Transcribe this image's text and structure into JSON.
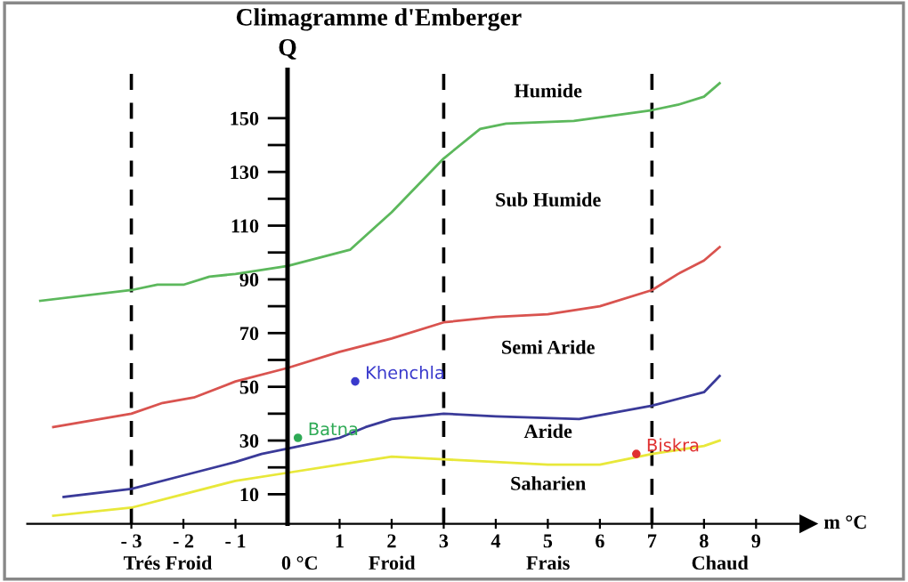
{
  "chart_data": {
    "type": "line",
    "title": "Climagramme d'Emberger",
    "ylabel": "Q",
    "xlabel": "m °C",
    "xlim": [
      -5,
      10
    ],
    "ylim": [
      -1,
      168
    ],
    "xticks": [
      {
        "value": -3,
        "label": "- 3"
      },
      {
        "value": -2,
        "label": "- 2"
      },
      {
        "value": -1,
        "label": "- 1"
      },
      1,
      2,
      3,
      4,
      5,
      6,
      7,
      8,
      9
    ],
    "yticks": [
      10,
      {
        "value": 20,
        "label": null
      },
      30,
      {
        "value": 40,
        "label": null
      },
      50,
      {
        "value": 60,
        "label": null
      },
      70,
      {
        "value": 80,
        "label": null
      },
      90,
      {
        "value": 100,
        "label": null
      },
      110,
      {
        "value": 120,
        "label": null
      },
      130,
      {
        "value": 140,
        "label": null
      },
      150
    ],
    "grid": false,
    "legend": false,
    "marker": "none",
    "line_style": "solid",
    "series": [
      {
        "color": "#5cb85c",
        "x": [
          -4.75,
          -3,
          -2.5,
          -2,
          -1.5,
          -1,
          0,
          1.2,
          2,
          3,
          3.7,
          4.2,
          5.5,
          7,
          7.5,
          8,
          8.3
        ],
        "values": [
          82,
          86,
          88,
          88,
          91,
          92,
          95,
          101,
          115,
          135,
          146,
          148,
          149,
          153,
          155,
          158,
          163
        ]
      },
      {
        "color": "#d9534f",
        "x": [
          -4.5,
          -3,
          -2.4,
          -1.8,
          -1,
          0,
          1,
          2,
          3,
          4,
          5,
          6,
          7,
          7.5,
          8,
          8.3
        ],
        "values": [
          35,
          40,
          44,
          46,
          52,
          57,
          63,
          68,
          74,
          76,
          77,
          80,
          86,
          92,
          97,
          102
        ]
      },
      {
        "color": "#3a3a99",
        "x": [
          -4.3,
          -3,
          -2,
          -1,
          -0.5,
          0,
          1,
          1.5,
          2,
          3,
          4,
          5.6,
          7,
          8,
          8.3
        ],
        "values": [
          9,
          12,
          17,
          22,
          25,
          27,
          31,
          35,
          38,
          40,
          39,
          38,
          43,
          48,
          54
        ]
      },
      {
        "color": "#e8e83a",
        "x": [
          -4.5,
          -3,
          -2,
          -1,
          0,
          1,
          2,
          3,
          4,
          5,
          6,
          7,
          8,
          8.3
        ],
        "values": [
          2,
          5,
          10,
          15,
          18,
          21,
          24,
          23,
          22,
          21,
          21,
          25,
          28,
          30
        ]
      },
      {
        "type": "scatter",
        "name": "Khenchla",
        "color": "#3a3acc",
        "x": [
          1.3
        ],
        "values": [
          52
        ]
      },
      {
        "type": "scatter",
        "name": "Batna",
        "color": "#2eaa55",
        "x": [
          0.2
        ],
        "values": [
          31
        ]
      },
      {
        "type": "scatter",
        "name": "Biskra",
        "color": "#e03030",
        "x": [
          6.7
        ],
        "values": [
          25
        ]
      }
    ],
    "ref_lines": [
      {
        "axis": "x",
        "value": -3,
        "line_style": "dashed",
        "color": "#000000"
      },
      {
        "axis": "x",
        "value": 3,
        "line_style": "dashed",
        "color": "#000000"
      },
      {
        "axis": "x",
        "value": 7,
        "line_style": "dashed",
        "color": "#000000"
      }
    ],
    "annotations": [
      "Humide",
      "Sub Humide",
      "Semi Aride",
      "Aride",
      "Saharien",
      "Trés Froid",
      "0 °C",
      "Froid",
      "Frais",
      "Chaud"
    ]
  }
}
